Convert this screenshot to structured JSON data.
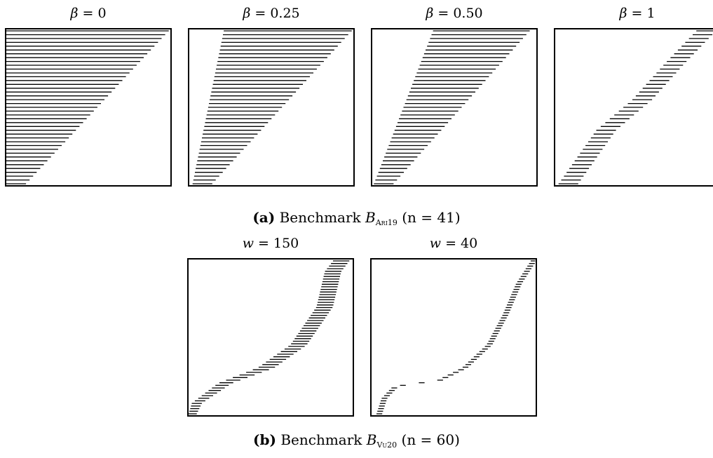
{
  "figure_a": {
    "caption_label": "(a)",
    "caption_text": "Benchmark",
    "caption_symbol": "B",
    "caption_subscript": "Ari19",
    "caption_n": "(n = 41)",
    "panels": [
      {
        "title_var": "β",
        "title_value": "= 0",
        "n": 41,
        "profile": "beta0"
      },
      {
        "title_var": "β",
        "title_value": "= 0.25",
        "n": 41,
        "profile": "beta025"
      },
      {
        "title_var": "β",
        "title_value": "= 0.50",
        "n": 41,
        "profile": "beta050"
      },
      {
        "title_var": "β",
        "title_value": "= 1",
        "n": 41,
        "profile": "beta1"
      }
    ]
  },
  "figure_b": {
    "caption_label": "(b)",
    "caption_text": "Benchmark",
    "caption_symbol": "B",
    "caption_subscript": "Vu20",
    "caption_n": "(n = 60)",
    "panels": [
      {
        "title_var": "w",
        "title_value": "= 150",
        "n": 60,
        "profile": "w150"
      },
      {
        "title_var": "w",
        "title_value": "= 40",
        "n": 60,
        "profile": "w40"
      }
    ]
  }
}
